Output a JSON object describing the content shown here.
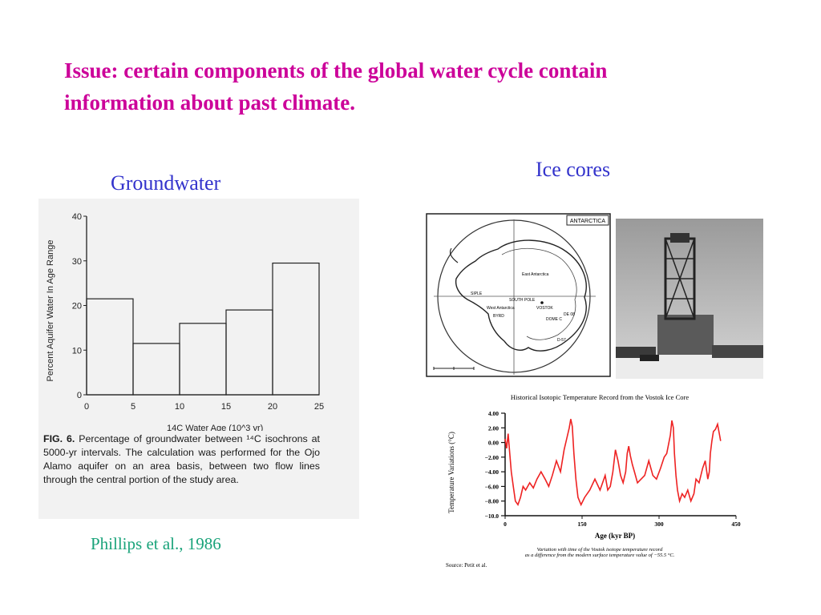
{
  "title": {
    "line1": "Issue: certain components of the global water cycle contain",
    "line2": "information about past climate."
  },
  "groundwater": {
    "label": "Groundwater",
    "credit": "Phillips et al., 1986",
    "figure": {
      "ylabel": "Percent Aquifer Water In Age Range",
      "xlabel": "14C Water Age (10^3 yr)",
      "caption": "FIG. 6. Percentage of groundwater between 14C isochrons at 5000-yr intervals. The calculation was performed for the Ojo Alamo aquifer on an area basis, between two flow lines through the central portion of the study area.",
      "caption_lead": "FIG. 6.",
      "caption_body": " Percentage of groundwater between ¹⁴C isochrons at 5000-yr intervals. The calculation was performed for the Ojo Alamo aquifer on an area basis, between two flow lines through the central portion of the study area."
    }
  },
  "ice_cores": {
    "label": "Ice cores",
    "map": {
      "title": "ANTARCTICA",
      "labels": [
        "East Antarctica",
        "West Antarctica",
        "SOUTH POLE",
        "VOSTOK",
        "DOME C",
        "DE 08",
        "BYRD",
        "SIPLE",
        "D-57"
      ]
    },
    "vostok": {
      "title": "Historical Isotopic Temperature Record from the Vostok Ice Core",
      "ylabel": "Temperature Variations (°C)",
      "xlabel": "Age (kyr BP)",
      "caption1": "Variation with time of the Vostok isotope temperature record",
      "caption2": "as a difference from the modern surface temperature value of −55.5 °C.",
      "source": "Source: Petit et al."
    }
  },
  "chart_data": [
    {
      "type": "bar",
      "categories": [
        "0-5",
        "5-10",
        "10-15",
        "15-20",
        "20-25"
      ],
      "bin_edges": [
        0,
        5,
        10,
        15,
        20,
        25
      ],
      "values": [
        21.5,
        11.5,
        16,
        19,
        29.5
      ],
      "xticks": [
        "0",
        "5",
        "10",
        "15",
        "20",
        "25"
      ],
      "yticks": [
        "0",
        "10",
        "20",
        "30",
        "40"
      ],
      "ylim": [
        0,
        40
      ],
      "xlim": [
        0,
        25
      ]
    },
    {
      "type": "line",
      "ylim": [
        -10,
        4
      ],
      "xlim": [
        0,
        450
      ],
      "yticks": [
        "4.00",
        "2.00",
        "0.00",
        "−2.00",
        "−4.00",
        "−6.00",
        "−8.00",
        "−10.0"
      ],
      "xticks": [
        "0",
        "150",
        "300",
        "450"
      ],
      "series": [
        {
          "color": "#ee2222",
          "x": [
            0,
            3,
            6,
            9,
            12,
            16,
            20,
            25,
            30,
            35,
            40,
            48,
            55,
            62,
            70,
            78,
            85,
            92,
            100,
            108,
            115,
            120,
            125,
            128,
            131,
            134,
            138,
            142,
            148,
            155,
            165,
            175,
            185,
            195,
            200,
            205,
            210,
            215,
            220,
            225,
            230,
            235,
            238,
            241,
            244,
            248,
            252,
            258,
            265,
            272,
            280,
            288,
            295,
            303,
            310,
            315,
            322,
            325,
            328,
            330,
            333,
            336,
            340,
            345,
            350,
            356,
            362,
            368,
            372,
            378,
            385,
            390,
            395,
            398,
            400,
            403,
            406,
            410,
            414,
            418,
            420
          ],
          "y": [
            0.5,
            -0.8,
            1.2,
            -1.5,
            -4,
            -6,
            -8,
            -8.5,
            -7.5,
            -6,
            -6.5,
            -5.5,
            -6.2,
            -5,
            -4,
            -5,
            -6,
            -4.5,
            -2.5,
            -4,
            -1,
            0.5,
            2,
            3.2,
            2.2,
            -1.5,
            -5,
            -7.5,
            -8.5,
            -7.5,
            -6.5,
            -5,
            -6.5,
            -4.5,
            -6.5,
            -6,
            -4,
            -1,
            -2.5,
            -4.5,
            -5.5,
            -4,
            -1.5,
            -0.5,
            -1.8,
            -3,
            -4,
            -5.5,
            -5,
            -4.5,
            -2.5,
            -4.5,
            -5,
            -3.5,
            -2,
            -1.5,
            1,
            3,
            2,
            -1.5,
            -4.5,
            -6.5,
            -8,
            -7,
            -7.5,
            -6.5,
            -8,
            -7,
            -5,
            -5.5,
            -3.5,
            -2.5,
            -5,
            -4,
            -1.5,
            0.2,
            1.5,
            1.8,
            2.5,
            1,
            0.2
          ]
        }
      ]
    }
  ]
}
